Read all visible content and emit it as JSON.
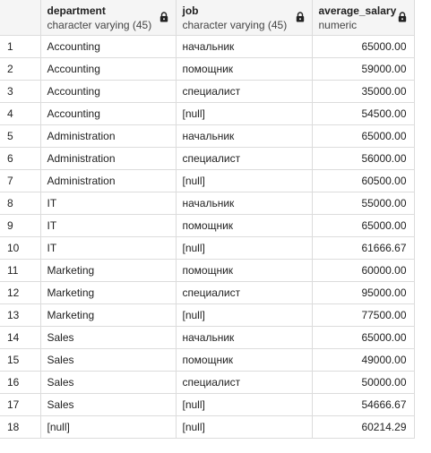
{
  "columns": [
    {
      "name": "department",
      "type": "character varying (45)"
    },
    {
      "name": "job",
      "type": "character varying (45)"
    },
    {
      "name": "average_salary",
      "type": "numeric"
    }
  ],
  "rows": [
    {
      "n": "1",
      "department": "Accounting",
      "job": "начальник",
      "average_salary": "65000.00"
    },
    {
      "n": "2",
      "department": "Accounting",
      "job": "помощник",
      "average_salary": "59000.00"
    },
    {
      "n": "3",
      "department": "Accounting",
      "job": "специалист",
      "average_salary": "35000.00"
    },
    {
      "n": "4",
      "department": "Accounting",
      "job": "[null]",
      "average_salary": "54500.00"
    },
    {
      "n": "5",
      "department": "Administration",
      "job": "начальник",
      "average_salary": "65000.00"
    },
    {
      "n": "6",
      "department": "Administration",
      "job": "специалист",
      "average_salary": "56000.00"
    },
    {
      "n": "7",
      "department": "Administration",
      "job": "[null]",
      "average_salary": "60500.00"
    },
    {
      "n": "8",
      "department": "IT",
      "job": "начальник",
      "average_salary": "55000.00"
    },
    {
      "n": "9",
      "department": "IT",
      "job": "помощник",
      "average_salary": "65000.00"
    },
    {
      "n": "10",
      "department": "IT",
      "job": "[null]",
      "average_salary": "61666.67"
    },
    {
      "n": "11",
      "department": "Marketing",
      "job": "помощник",
      "average_salary": "60000.00"
    },
    {
      "n": "12",
      "department": "Marketing",
      "job": "специалист",
      "average_salary": "95000.00"
    },
    {
      "n": "13",
      "department": "Marketing",
      "job": "[null]",
      "average_salary": "77500.00"
    },
    {
      "n": "14",
      "department": "Sales",
      "job": "начальник",
      "average_salary": "65000.00"
    },
    {
      "n": "15",
      "department": "Sales",
      "job": "помощник",
      "average_salary": "49000.00"
    },
    {
      "n": "16",
      "department": "Sales",
      "job": "специалист",
      "average_salary": "50000.00"
    },
    {
      "n": "17",
      "department": "Sales",
      "job": "[null]",
      "average_salary": "54666.67"
    },
    {
      "n": "18",
      "department": "[null]",
      "job": "[null]",
      "average_salary": "60214.29"
    }
  ]
}
